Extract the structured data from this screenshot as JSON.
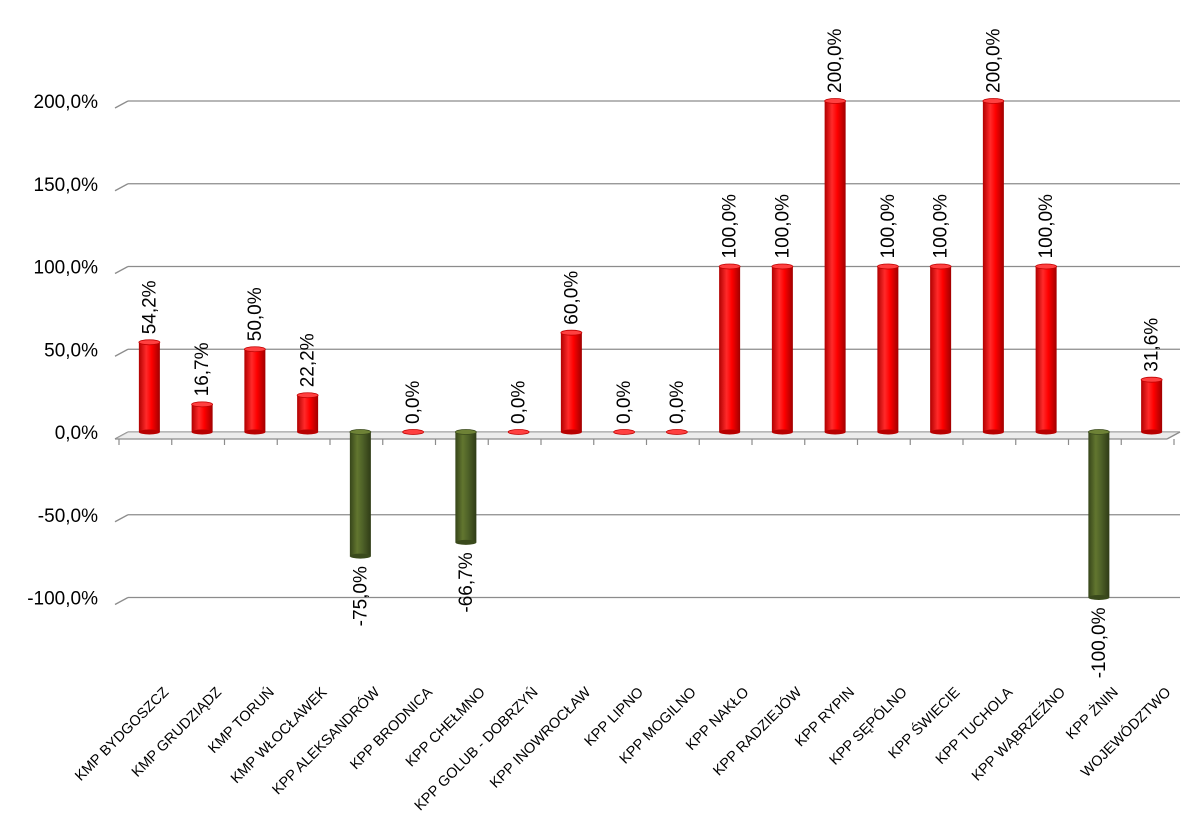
{
  "chart_data": {
    "type": "bar",
    "categories": [
      "KMP  BYDGOSZCZ",
      "KMP  GRUDZIĄDZ",
      "KMP  TORUŃ",
      "KMP  WŁOCŁAWEK",
      "KPP  ALEKSANDRÓW",
      "KPP BRODNICA",
      "KPP  CHEŁMNO",
      "KPP  GOLUB - DOBRZYŃ",
      "KPP  INOWROCŁAW",
      "KPP  LIPNO",
      "KPP  MOGILNO",
      "KPP  NAKŁO",
      "KPP  RADZIEJÓW",
      "KPP  RYPIN",
      "KPP  SĘPÓLNO",
      "KPP  ŚWIECIE",
      "KPP  TUCHOLA",
      "KPP  WĄBRZEŹNO",
      "KPP  ŻNIN",
      "WOJEWÓDZTWO"
    ],
    "values": [
      54.2,
      16.7,
      50.0,
      22.2,
      -75.0,
      0.0,
      -66.7,
      0.0,
      60.0,
      0.0,
      0.0,
      100.0,
      100.0,
      200.0,
      100.0,
      100.0,
      200.0,
      100.0,
      -100.0,
      31.6
    ],
    "value_labels": [
      "54,2%",
      "16,7%",
      "50,0%",
      "22,2%",
      "-75,0%",
      "0,0%",
      "-66,7%",
      "0,0%",
      "60,0%",
      "0,0%",
      "0,0%",
      "100,0%",
      "100,0%",
      "200,0%",
      "100,0%",
      "100,0%",
      "200,0%",
      "100,0%",
      "-100,0%",
      "31,6%"
    ],
    "ylim": [
      -100,
      200
    ],
    "y_ticks": [
      200,
      150,
      100,
      50,
      0,
      -50,
      -100
    ],
    "y_tick_labels": [
      "200,0%",
      "150,0%",
      "100,0%",
      "50,0%",
      "0,0%",
      "-50,0%",
      "-100,0%"
    ],
    "title": "",
    "xlabel": "",
    "ylabel": "",
    "grid": true,
    "legend": "none",
    "colors": {
      "positive": "#ff0000",
      "negative": "#4f6228",
      "grid": "#8c8c8c",
      "floor": "#d9d9d9"
    }
  }
}
